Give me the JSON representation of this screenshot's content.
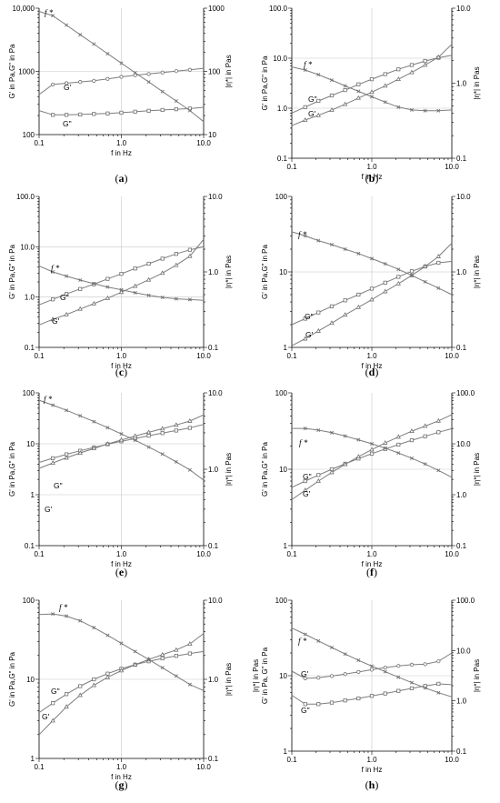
{
  "chart_data": [
    {
      "id": "a",
      "type": "line",
      "caption": "a",
      "xlabel": "f in Hz",
      "ylabel_left": "G' in Pa,G\" in Pa",
      "ylabel_right": "|η*| in Pas",
      "x_scale": "log",
      "xlim": [
        0.1,
        10.0
      ],
      "x_ticks": [
        0.1,
        1.0,
        10.0
      ],
      "x_tick_labels": [
        "0.1",
        "1.0",
        "10.0"
      ],
      "ylim_left": [
        100,
        10000
      ],
      "y_ticks_left": [
        100,
        1000,
        10000
      ],
      "y_tick_labels_left": [
        "100",
        "1000",
        "10,000"
      ],
      "ylim_right": [
        10,
        1000
      ],
      "y_ticks_right": [
        10,
        100,
        1000
      ],
      "y_tick_labels_right": [
        "10",
        "100",
        "1000"
      ],
      "x": [
        0.1,
        0.147,
        0.215,
        0.316,
        0.464,
        0.681,
        1.0,
        1.47,
        2.15,
        3.16,
        4.64,
        6.81,
        10.0
      ],
      "series": [
        {
          "name": "G'",
          "axis": "left",
          "marker": "circle",
          "values": [
            430,
            620,
            650,
            680,
            710,
            760,
            820,
            870,
            910,
            960,
            1010,
            1060,
            1120
          ]
        },
        {
          "name": "G\"",
          "axis": "left",
          "marker": "square",
          "values": [
            240,
            205,
            205,
            208,
            212,
            216,
            222,
            230,
            238,
            245,
            252,
            258,
            270
          ]
        },
        {
          "name": "f*",
          "axis": "right",
          "marker": "x",
          "values": [
            890,
            760,
            540,
            380,
            270,
            190,
            135,
            95,
            68,
            48,
            34,
            24,
            16
          ]
        }
      ],
      "labels": [
        {
          "text": "f *",
          "italic": true
        },
        {
          "text": "G'"
        },
        {
          "text": "G\""
        }
      ]
    },
    {
      "id": "b",
      "type": "line",
      "caption": "b",
      "xlabel": "f in Hz",
      "ylabel_left": "G' in Pa,G\" in Pa",
      "ylabel_right": "|η*| in Pas",
      "x_scale": "log",
      "xlim": [
        0.1,
        10.0
      ],
      "x_ticks": [
        0.1,
        1.0,
        10.0
      ],
      "x_tick_labels": [
        "0.1",
        "1.0",
        "10.0"
      ],
      "ylim_left": [
        0.1,
        100
      ],
      "y_ticks_left": [
        0.1,
        1,
        10,
        100
      ],
      "y_tick_labels_left": [
        "0.1",
        "1.0",
        "10.0",
        "100.0"
      ],
      "ylim_right": [
        0.1,
        10
      ],
      "y_ticks_right": [
        0.1,
        1,
        10
      ],
      "y_tick_labels_right": [
        "0.1",
        "1.0",
        "10.0"
      ],
      "x": [
        0.1,
        0.147,
        0.215,
        0.316,
        0.464,
        0.681,
        1.0,
        1.47,
        2.15,
        3.16,
        4.64,
        6.81,
        10.0
      ],
      "series": [
        {
          "name": "G\"",
          "axis": "left",
          "marker": "square",
          "values": [
            0.8,
            1.05,
            1.4,
            1.8,
            2.3,
            3.0,
            3.8,
            4.8,
            6.0,
            7.3,
            8.8,
            10.2,
            11.5
          ]
        },
        {
          "name": "G'",
          "axis": "left",
          "marker": "triangle",
          "values": [
            0.45,
            0.58,
            0.72,
            0.92,
            1.2,
            1.6,
            2.1,
            2.8,
            3.8,
            5.2,
            7.3,
            10.5,
            19
          ]
        },
        {
          "name": "f*",
          "axis": "right",
          "marker": "x",
          "values": [
            1.65,
            1.5,
            1.3,
            1.1,
            0.92,
            0.78,
            0.66,
            0.56,
            0.48,
            0.44,
            0.43,
            0.43,
            0.44
          ]
        }
      ],
      "labels": [
        {
          "text": "f *",
          "italic": true
        },
        {
          "text": "G\""
        },
        {
          "text": "G'"
        }
      ]
    },
    {
      "id": "c",
      "type": "line",
      "caption": "c",
      "xlabel": "f in Hz",
      "ylabel_left": "G' in Pa,G\" in Pa",
      "ylabel_right": "|η*| in Pas",
      "x_scale": "log",
      "xlim": [
        0.1,
        10.0
      ],
      "x_ticks": [
        0.1,
        1.0,
        10.0
      ],
      "x_tick_labels": [
        "0.1",
        "1.0",
        "10.0"
      ],
      "ylim_left": [
        0.1,
        100
      ],
      "y_ticks_left": [
        0.1,
        1,
        10,
        100
      ],
      "y_tick_labels_left": [
        "0.1",
        "1.0",
        "10.0",
        "100.0"
      ],
      "ylim_right": [
        0.1,
        10
      ],
      "y_ticks_right": [
        0.1,
        1,
        10
      ],
      "y_tick_labels_right": [
        "0.1",
        "1.0",
        "10.0"
      ],
      "x": [
        0.1,
        0.147,
        0.215,
        0.316,
        0.464,
        0.681,
        1.0,
        1.47,
        2.15,
        3.16,
        4.64,
        6.81,
        10.0
      ],
      "series": [
        {
          "name": "G\"",
          "axis": "left",
          "marker": "square",
          "values": [
            0.7,
            0.9,
            1.15,
            1.45,
            1.8,
            2.3,
            2.9,
            3.7,
            4.6,
            5.8,
            7.2,
            8.7,
            10
          ]
        },
        {
          "name": "G'",
          "axis": "left",
          "marker": "triangle",
          "values": [
            0.28,
            0.36,
            0.45,
            0.58,
            0.74,
            0.95,
            1.25,
            1.65,
            2.2,
            3.0,
            4.3,
            6.5,
            14
          ]
        },
        {
          "name": "f*",
          "axis": "right",
          "marker": "x",
          "values": [
            1.2,
            1.0,
            0.88,
            0.78,
            0.7,
            0.63,
            0.58,
            0.53,
            0.49,
            0.46,
            0.44,
            0.43,
            0.42
          ]
        }
      ],
      "labels": [
        {
          "text": "f *",
          "italic": true
        },
        {
          "text": "G\""
        },
        {
          "text": "G'"
        }
      ]
    },
    {
      "id": "d",
      "type": "line",
      "caption": "d",
      "xlabel": "f in Hz",
      "ylabel_left": "G' in Pa,G\" in Pa",
      "ylabel_right": "|η*| in Pas",
      "x_scale": "log",
      "xlim": [
        0.1,
        10.0
      ],
      "x_ticks": [
        0.1,
        1.0,
        10.0
      ],
      "x_tick_labels": [
        "0.1",
        "1.0",
        "10.0"
      ],
      "ylim_left": [
        1,
        100
      ],
      "y_ticks_left": [
        1,
        10,
        100
      ],
      "y_tick_labels_left": [
        "1",
        "10",
        "100"
      ],
      "ylim_right": [
        0.1,
        10
      ],
      "y_ticks_right": [
        0.1,
        1,
        10
      ],
      "y_tick_labels_right": [
        "0.1",
        "1.0",
        "10.0"
      ],
      "x": [
        0.1,
        0.147,
        0.215,
        0.316,
        0.464,
        0.681,
        1.0,
        1.47,
        2.15,
        3.16,
        4.64,
        6.81,
        10.0
      ],
      "series": [
        {
          "name": "G\"",
          "axis": "left",
          "marker": "square",
          "values": [
            2.0,
            2.4,
            2.9,
            3.5,
            4.2,
            5.0,
            6.0,
            7.2,
            8.6,
            10.2,
            11.8,
            13.2,
            13.8
          ]
        },
        {
          "name": "G'",
          "axis": "left",
          "marker": "triangle",
          "values": [
            1.05,
            1.3,
            1.65,
            2.1,
            2.7,
            3.4,
            4.3,
            5.5,
            7.0,
            9.0,
            11.8,
            16,
            24
          ]
        },
        {
          "name": "f*",
          "axis": "right",
          "marker": "x",
          "values": [
            3.4,
            3.0,
            2.6,
            2.3,
            2.0,
            1.75,
            1.5,
            1.28,
            1.08,
            0.9,
            0.74,
            0.61,
            0.5
          ]
        }
      ],
      "labels": [
        {
          "text": "f *",
          "italic": true
        },
        {
          "text": "G\""
        },
        {
          "text": "G'"
        }
      ]
    },
    {
      "id": "e",
      "type": "line",
      "caption": "e",
      "xlabel": "f in Hz",
      "ylabel_left": "G' in Pa,G\" in Pa",
      "ylabel_right": "|η*| in Pas",
      "x_scale": "log",
      "xlim": [
        0.1,
        10.0
      ],
      "x_ticks": [
        0.1,
        1.0,
        10.0
      ],
      "x_tick_labels": [
        "0.1",
        "1.0",
        "10.0"
      ],
      "ylim_left": [
        0.1,
        100
      ],
      "y_ticks_left": [
        0.1,
        1,
        10,
        100
      ],
      "y_tick_labels_left": [
        "0.1",
        "1",
        "10",
        "100"
      ],
      "ylim_right": [
        0.1,
        10
      ],
      "y_ticks_right": [
        0.1,
        1,
        10
      ],
      "y_tick_labels_right": [
        "0.1",
        "1.0",
        "10.0"
      ],
      "x": [
        0.1,
        0.147,
        0.215,
        0.316,
        0.464,
        0.681,
        1.0,
        1.47,
        2.15,
        3.16,
        4.64,
        6.81,
        10.0
      ],
      "series": [
        {
          "name": "G\"",
          "axis": "left",
          "marker": "square",
          "values": [
            4.3,
            5.2,
            6.2,
            7.3,
            8.5,
            9.8,
            11.2,
            12.7,
            14.4,
            16.2,
            18.2,
            20.5,
            24
          ]
        },
        {
          "name": "G'",
          "axis": "left",
          "marker": "triangle",
          "values": [
            3.3,
            4.2,
            5.3,
            6.6,
            8.1,
            9.9,
            11.9,
            14.2,
            16.8,
            19.8,
            23.4,
            28,
            37
          ]
        },
        {
          "name": "f*",
          "axis": "right",
          "marker": "x",
          "values": [
            8.0,
            6.9,
            5.9,
            5.0,
            4.2,
            3.5,
            2.9,
            2.4,
            1.95,
            1.58,
            1.25,
            0.98,
            0.72
          ]
        }
      ],
      "labels": [
        {
          "text": "f *",
          "italic": true
        },
        {
          "text": "G\""
        },
        {
          "text": "G'"
        }
      ]
    },
    {
      "id": "f",
      "type": "line",
      "caption": "f",
      "xlabel": "f in Hz",
      "ylabel_left": "G' in Pa,G\" in Pa",
      "ylabel_right": "|η*| in Pas",
      "x_scale": "log",
      "xlim": [
        0.1,
        10.0
      ],
      "x_ticks": [
        0.1,
        1.0,
        10.0
      ],
      "x_tick_labels": [
        "0.1",
        "1.0",
        "10.0"
      ],
      "ylim_left": [
        1,
        100
      ],
      "y_ticks_left": [
        1,
        10,
        100
      ],
      "y_tick_labels_left": [
        "1",
        "10",
        "100"
      ],
      "ylim_right": [
        0.1,
        100
      ],
      "y_ticks_right": [
        0.1,
        1,
        10,
        100
      ],
      "y_tick_labels_right": [
        "0.1",
        "1.0",
        "10.0",
        "100.0"
      ],
      "x": [
        0.1,
        0.147,
        0.215,
        0.316,
        0.464,
        0.681,
        1.0,
        1.47,
        2.15,
        3.16,
        4.64,
        6.81,
        10.0
      ],
      "series": [
        {
          "name": "G\"",
          "axis": "left",
          "marker": "square",
          "values": [
            5.8,
            7.0,
            8.4,
            10.0,
            11.8,
            13.8,
            16.0,
            18.4,
            21.0,
            24.0,
            27.0,
            30.5,
            34
          ]
        },
        {
          "name": "G'",
          "axis": "left",
          "marker": "triangle",
          "values": [
            4.0,
            5.3,
            7.0,
            9.1,
            11.6,
            14.6,
            18.1,
            22.1,
            26.5,
            31.5,
            36.8,
            43,
            52
          ]
        },
        {
          "name": "f*",
          "axis": "right",
          "marker": "x",
          "values": [
            20,
            20,
            18.5,
            16.5,
            14.2,
            12.0,
            10.0,
            8.2,
            6.6,
            5.2,
            4.0,
            3.0,
            2.2
          ]
        }
      ],
      "labels": [
        {
          "text": "f *",
          "italic": true
        },
        {
          "text": "G\""
        },
        {
          "text": "G'"
        }
      ]
    },
    {
      "id": "g",
      "type": "line",
      "caption": "g",
      "xlabel": "f in Hz",
      "ylabel_left": "G' in Pa,G\" in Pa",
      "ylabel_right": "|η*| in Pas",
      "x_scale": "log",
      "xlim": [
        0.1,
        10.0
      ],
      "x_ticks": [
        0.1,
        1.0,
        10.0
      ],
      "x_tick_labels": [
        "0.1",
        "1.0",
        "10.0"
      ],
      "ylim_left": [
        1,
        100
      ],
      "y_ticks_left": [
        1,
        10,
        100
      ],
      "y_tick_labels_left": [
        "1",
        "10",
        "100"
      ],
      "ylim_right": [
        0.1,
        10
      ],
      "y_ticks_right": [
        0.1,
        1,
        10
      ],
      "y_tick_labels_right": [
        "0.1",
        "1.0",
        "10.0"
      ],
      "x": [
        0.1,
        0.147,
        0.215,
        0.316,
        0.464,
        0.681,
        1.0,
        1.47,
        2.15,
        3.16,
        4.64,
        6.81,
        10.0
      ],
      "series": [
        {
          "name": "G\"",
          "axis": "left",
          "marker": "square",
          "values": [
            3.8,
            5.0,
            6.5,
            8.2,
            10.0,
            11.8,
            13.6,
            15.3,
            16.9,
            18.4,
            19.8,
            21.2,
            22.5
          ]
        },
        {
          "name": "G'",
          "axis": "left",
          "marker": "triangle",
          "values": [
            2.0,
            3.0,
            4.5,
            6.3,
            8.4,
            10.6,
            12.9,
            15.3,
            17.8,
            20.5,
            23.5,
            28,
            38
          ]
        },
        {
          "name": "f*",
          "axis": "right",
          "marker": "x",
          "values": [
            6.6,
            6.7,
            6.3,
            5.5,
            4.5,
            3.6,
            2.85,
            2.25,
            1.78,
            1.4,
            1.1,
            0.86,
            0.72
          ]
        }
      ],
      "labels": [
        {
          "text": "f *",
          "italic": true
        },
        {
          "text": "G\""
        },
        {
          "text": "G'"
        }
      ]
    },
    {
      "id": "h",
      "type": "line",
      "caption": "h",
      "xlabel": "f in Hz",
      "ylabel_left": "G' in Pa, G\" in Pa",
      "ylabel_right": "|η*| in Pas",
      "ylabel_right_inner": "|η*| in Pas",
      "x_scale": "log",
      "xlim": [
        0.1,
        10.0
      ],
      "x_ticks": [
        0.1,
        1.0,
        10.0
      ],
      "x_tick_labels": [
        "0.1",
        "1.0",
        "10.0"
      ],
      "ylim_left": [
        1,
        100
      ],
      "y_ticks_left": [
        1,
        10,
        100
      ],
      "y_tick_labels_left": [
        "1",
        "10",
        "100"
      ],
      "ylim_right": [
        0.1,
        100
      ],
      "y_ticks_right": [
        0.1,
        1,
        10,
        100
      ],
      "y_tick_labels_right": [
        "0.1",
        "1.0",
        "10.0",
        "100.0"
      ],
      "x": [
        0.1,
        0.147,
        0.215,
        0.316,
        0.464,
        0.681,
        1.0,
        1.47,
        2.15,
        3.16,
        4.64,
        6.81,
        10.0
      ],
      "series": [
        {
          "name": "G'",
          "axis": "left",
          "marker": "circle",
          "values": [
            11.5,
            9.2,
            9.4,
            9.9,
            10.5,
            11.2,
            12.0,
            12.8,
            13.5,
            14.0,
            14.2,
            15.5,
            20
          ]
        },
        {
          "name": "G\"",
          "axis": "left",
          "marker": "square",
          "values": [
            5.5,
            4.2,
            4.2,
            4.4,
            4.7,
            5.0,
            5.4,
            5.8,
            6.3,
            6.8,
            7.3,
            7.8,
            7.6
          ]
        },
        {
          "name": "f*",
          "axis": "right",
          "marker": "x",
          "values": [
            28,
            21,
            15.5,
            11.5,
            8.5,
            6.4,
            4.9,
            3.8,
            2.95,
            2.3,
            1.8,
            1.45,
            1.2
          ]
        }
      ],
      "labels": [
        {
          "text": "f *",
          "italic": true
        },
        {
          "text": "G'"
        },
        {
          "text": "G\""
        }
      ]
    }
  ]
}
